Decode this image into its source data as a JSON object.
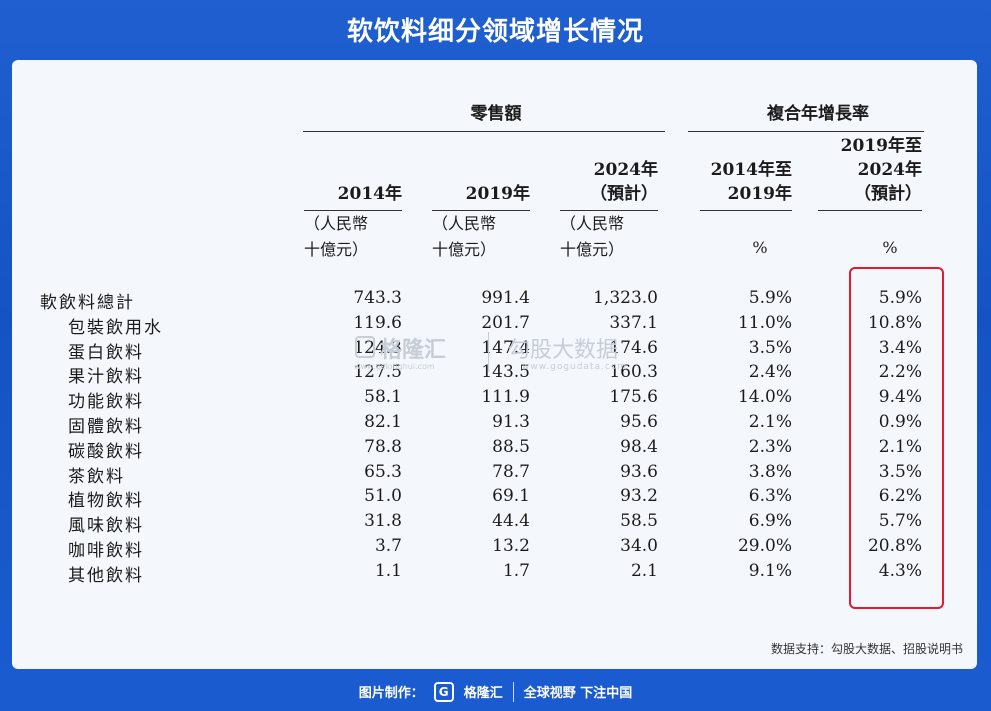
{
  "title": "软饮料细分领域增长情况",
  "table": {
    "group_headers": {
      "retail": "零售額",
      "cagr": "複合年增長率"
    },
    "columns": [
      {
        "header": [
          "2014年"
        ],
        "unit": [
          "（人民幣",
          "十億元）"
        ]
      },
      {
        "header": [
          "2019年"
        ],
        "unit": [
          "（人民幣",
          "十億元）"
        ]
      },
      {
        "header": [
          "2024年",
          "（預計）"
        ],
        "unit": [
          "（人民幣",
          "十億元）"
        ]
      },
      {
        "header": [
          "2014年至",
          "2019年"
        ],
        "unit": [
          "%"
        ]
      },
      {
        "header": [
          "2019年至",
          "2024年",
          "（預計）"
        ],
        "unit": [
          "%"
        ]
      }
    ],
    "rows": [
      {
        "label": "軟飲料總計",
        "values": [
          "743.3",
          "991.4",
          "1,323.0",
          "5.9%",
          "5.9%"
        ]
      },
      {
        "label": "包裝飲用水",
        "values": [
          "119.6",
          "201.7",
          "337.1",
          "11.0%",
          "10.8%"
        ]
      },
      {
        "label": "蛋白飲料",
        "values": [
          "124.3",
          "147.4",
          "174.6",
          "3.5%",
          "3.4%"
        ]
      },
      {
        "label": "果汁飲料",
        "values": [
          "127.5",
          "143.5",
          "160.3",
          "2.4%",
          "2.2%"
        ]
      },
      {
        "label": "功能飲料",
        "values": [
          "58.1",
          "111.9",
          "175.6",
          "14.0%",
          "9.4%"
        ]
      },
      {
        "label": "固體飲料",
        "values": [
          "82.1",
          "91.3",
          "95.6",
          "2.1%",
          "0.9%"
        ]
      },
      {
        "label": "碳酸飲料",
        "values": [
          "78.8",
          "88.5",
          "98.4",
          "2.3%",
          "2.1%"
        ]
      },
      {
        "label": "茶飲料",
        "values": [
          "65.3",
          "78.7",
          "93.6",
          "3.8%",
          "3.5%"
        ]
      },
      {
        "label": "植物飲料",
        "values": [
          "51.0",
          "69.1",
          "93.2",
          "6.3%",
          "6.2%"
        ]
      },
      {
        "label": "風味飲料",
        "values": [
          "31.8",
          "44.4",
          "58.5",
          "6.9%",
          "5.7%"
        ]
      },
      {
        "label": "咖啡飲料",
        "values": [
          "3.7",
          "13.2",
          "34.0",
          "29.0%",
          "20.8%"
        ]
      },
      {
        "label": "其他飲料",
        "values": [
          "1.1",
          "1.7",
          "2.1",
          "9.1%",
          "4.3%"
        ]
      }
    ]
  },
  "watermarks": {
    "brand": "格隆汇",
    "brand_url": "www.gelonghui.com",
    "data_brand": "勾股大数据",
    "data_url": "www.gogudata.com"
  },
  "source": "数据支持：勾股大数据、招股说明书",
  "footer": {
    "made_by": "图片制作：",
    "brand": "格隆汇",
    "slogan": "全球视野 下注中国"
  },
  "colors": {
    "background": "#1553c4",
    "panel": "#f4f8fd",
    "highlight": "#e8192c"
  }
}
